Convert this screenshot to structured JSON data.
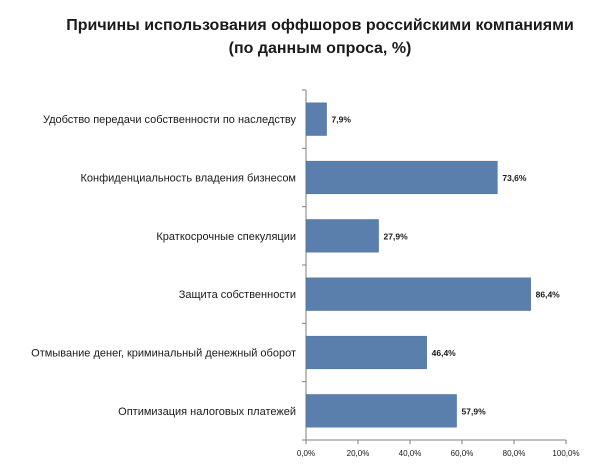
{
  "chart_data": {
    "type": "bar",
    "orientation": "horizontal",
    "title_line1": "Причины использования оффшоров российскими компаниями",
    "title_line2": "(по данным опроса, %)",
    "categories": [
      "Удобство передачи собственности по наследству",
      "Конфиденциальность владения бизнесом",
      "Краткосрочные спекуляции",
      "Защита собственности",
      "Отмывание денег, криминальный денежный оборот",
      "Оптимизация налоговых платежей"
    ],
    "values": [
      7.9,
      73.6,
      27.9,
      86.4,
      46.4,
      57.9
    ],
    "data_labels": [
      "7,9%",
      "73,6%",
      "27,9%",
      "86,4%",
      "46,4%",
      "57,9%"
    ],
    "xlim": [
      0,
      100
    ],
    "x_ticks": [
      0,
      20,
      40,
      60,
      80,
      100
    ],
    "x_tick_labels": [
      "0,0%",
      "20,0%",
      "40,0%",
      "60,0%",
      "80,0%",
      "100,0%"
    ],
    "grid": false,
    "legend": "none",
    "bar_color": "#5B7FAD"
  }
}
